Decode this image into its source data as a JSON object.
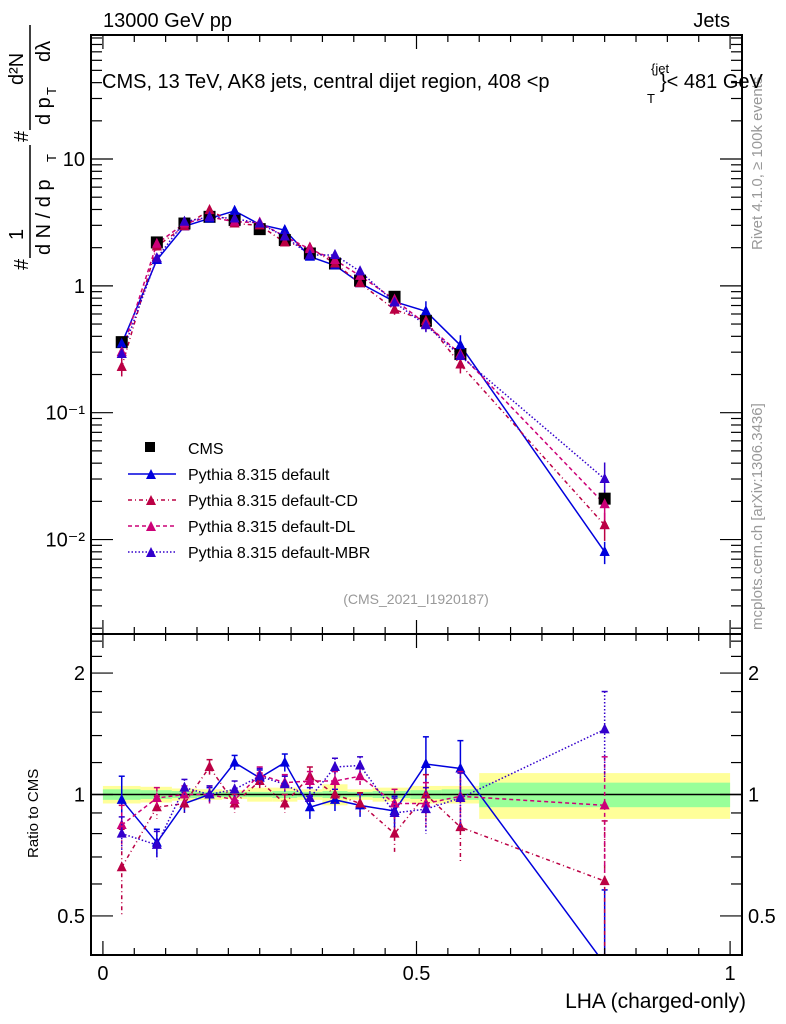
{
  "header": {
    "left": "13000 GeV pp",
    "right": "Jets"
  },
  "side_labels": {
    "rivet": "Rivet 4.1.0, ≥ 100k events",
    "mcplots": "mcplots.cern.ch [arXiv:1306.3436]"
  },
  "chart_data": [
    {
      "type": "line",
      "panel": "main",
      "title": "CMS, 13 TeV, AK8 jets, central dijet region, 408 <p_T^{jet}< 481 GeV",
      "title_parts": {
        "pre": "CMS, 13 TeV, AK8 jets, central dijet region, 408 <p",
        "sup": "{jet",
        "sub": "T",
        "post": "}< 481 GeV"
      },
      "ylabel": "1/N dN/dpT  /  d²N/(dpT dλ)",
      "ylabel_parts": {
        "hash": "#",
        "one": "1",
        "dN": "d N / d p",
        "T": "T",
        "num": "d²N",
        "den": "d p",
        "dlambda": "dλ"
      },
      "yscale": "log",
      "ylim": [
        0.0018,
        95
      ],
      "xlim": [
        -0.019,
        1.019
      ],
      "ytick_labels": [
        "10",
        "1",
        "10⁻¹",
        "10⁻²"
      ],
      "ytick_values": [
        10,
        1,
        0.1,
        0.01
      ],
      "watermark": "(CMS_2021_I1920187)",
      "x": [
        0.03,
        0.086,
        0.13,
        0.17,
        0.21,
        0.25,
        0.29,
        0.33,
        0.37,
        0.41,
        0.465,
        0.515,
        0.57,
        0.8
      ],
      "x_bin_edges": [
        0.0,
        0.06,
        0.11,
        0.15,
        0.19,
        0.23,
        0.27,
        0.31,
        0.35,
        0.39,
        0.43,
        0.49,
        0.54,
        0.6,
        1.0
      ],
      "legend_position": "lower-left",
      "series": [
        {
          "name": "CMS",
          "marker": "square",
          "color": "#000000",
          "line": "none",
          "values": [
            0.36,
            2.2,
            3.1,
            3.5,
            3.3,
            2.8,
            2.3,
            1.8,
            1.5,
            1.1,
            0.82,
            0.53,
            0.29,
            0.021
          ]
        },
        {
          "name": "Pythia 8.315 default",
          "marker": "triangle",
          "color": "#0000dd",
          "line": "solid",
          "values": [
            0.35,
            1.6,
            2.95,
            3.4,
            3.9,
            3.05,
            2.75,
            1.7,
            1.45,
            1.05,
            0.75,
            0.63,
            0.34,
            0.008
          ]
        },
        {
          "name": "Pythia 8.315 default-CD",
          "marker": "triangle",
          "color": "#bb0044",
          "line": "dashdot",
          "values": [
            0.23,
            2.05,
            2.95,
            3.95,
            3.1,
            3.0,
            2.2,
            2.0,
            1.5,
            1.05,
            0.65,
            0.53,
            0.24,
            0.013
          ]
        },
        {
          "name": "Pythia 8.315 default-DL",
          "marker": "triangle",
          "color": "#cc0077",
          "line": "dashed",
          "values": [
            0.3,
            2.15,
            3.1,
            3.5,
            3.2,
            3.15,
            2.45,
            1.95,
            1.6,
            1.2,
            0.78,
            0.5,
            0.29,
            0.019
          ]
        },
        {
          "name": "Pythia 8.315 default-MBR",
          "marker": "triangle",
          "color": "#3300cc",
          "line": "dotted",
          "values": [
            0.29,
            1.65,
            3.2,
            3.5,
            3.4,
            3.1,
            2.45,
            1.75,
            1.75,
            1.3,
            0.74,
            0.49,
            0.28,
            0.03
          ]
        }
      ]
    },
    {
      "type": "line",
      "panel": "ratio",
      "ylabel": "Ratio to CMS",
      "xlabel": "LHA (charged-only)",
      "yscale": "log",
      "ylim": [
        0.4,
        2.5
      ],
      "xlim": [
        -0.019,
        1.019
      ],
      "ytick_labels": [
        "0.5",
        "1",
        "2"
      ],
      "ytick_values": [
        0.5,
        1,
        2
      ],
      "xtick_labels": [
        "0",
        "0.5",
        "1"
      ],
      "xtick_values": [
        0,
        0.5,
        1
      ],
      "x": [
        0.03,
        0.086,
        0.13,
        0.17,
        0.21,
        0.25,
        0.29,
        0.33,
        0.37,
        0.41,
        0.465,
        0.515,
        0.57,
        0.8
      ],
      "band_stat_fraction": [
        0.03,
        0.025,
        0.02,
        0.015,
        0.015,
        0.015,
        0.02,
        0.015,
        0.02,
        0.015,
        0.02,
        0.025,
        0.03,
        0.07
      ],
      "band_total_fraction": [
        0.05,
        0.045,
        0.035,
        0.03,
        0.025,
        0.04,
        0.04,
        0.03,
        0.06,
        0.03,
        0.04,
        0.05,
        0.05,
        0.13
      ],
      "colors": {
        "band_stat": "#99ff99",
        "band_total": "#ffff99"
      },
      "series": [
        {
          "name": "Pythia 8.315 default",
          "color": "#0000dd",
          "line": "solid",
          "values": [
            0.97,
            0.76,
            0.95,
            1.0,
            1.2,
            1.1,
            1.2,
            0.93,
            0.97,
            0.94,
            0.91,
            1.19,
            1.16,
            0.38
          ],
          "err": [
            0.14,
            0.06,
            0.05,
            0.04,
            0.05,
            0.05,
            0.06,
            0.06,
            0.06,
            0.06,
            0.08,
            0.2,
            0.2,
            0.2
          ]
        },
        {
          "name": "Pythia 8.315 default-CD",
          "color": "#bb0044",
          "line": "dashdot",
          "values": [
            0.66,
            0.93,
            0.95,
            1.17,
            0.95,
            1.08,
            0.95,
            1.11,
            1.0,
            0.95,
            0.8,
            1.0,
            0.83,
            0.61
          ],
          "err": [
            0.16,
            0.06,
            0.05,
            0.05,
            0.05,
            0.05,
            0.05,
            0.06,
            0.06,
            0.06,
            0.09,
            0.12,
            0.15,
            0.25
          ]
        },
        {
          "name": "Pythia 8.315 default-DL",
          "color": "#cc0077",
          "line": "dashed",
          "values": [
            0.84,
            0.98,
            1.0,
            1.0,
            0.97,
            1.12,
            1.07,
            1.08,
            1.08,
            1.11,
            0.95,
            0.95,
            0.99,
            0.94
          ],
          "err": [
            0.1,
            0.06,
            0.05,
            0.05,
            0.05,
            0.05,
            0.05,
            0.06,
            0.06,
            0.06,
            0.08,
            0.12,
            0.15,
            0.3
          ]
        },
        {
          "name": "Pythia 8.315 default-MBR",
          "color": "#3300cc",
          "line": "dotted",
          "values": [
            0.8,
            0.75,
            1.04,
            1.0,
            1.03,
            1.11,
            1.06,
            0.98,
            1.17,
            1.18,
            0.9,
            0.92,
            0.98,
            1.45
          ],
          "err": [
            0.08,
            0.06,
            0.05,
            0.05,
            0.05,
            0.05,
            0.05,
            0.06,
            0.06,
            0.06,
            0.08,
            0.12,
            0.15,
            0.35
          ]
        }
      ]
    }
  ]
}
